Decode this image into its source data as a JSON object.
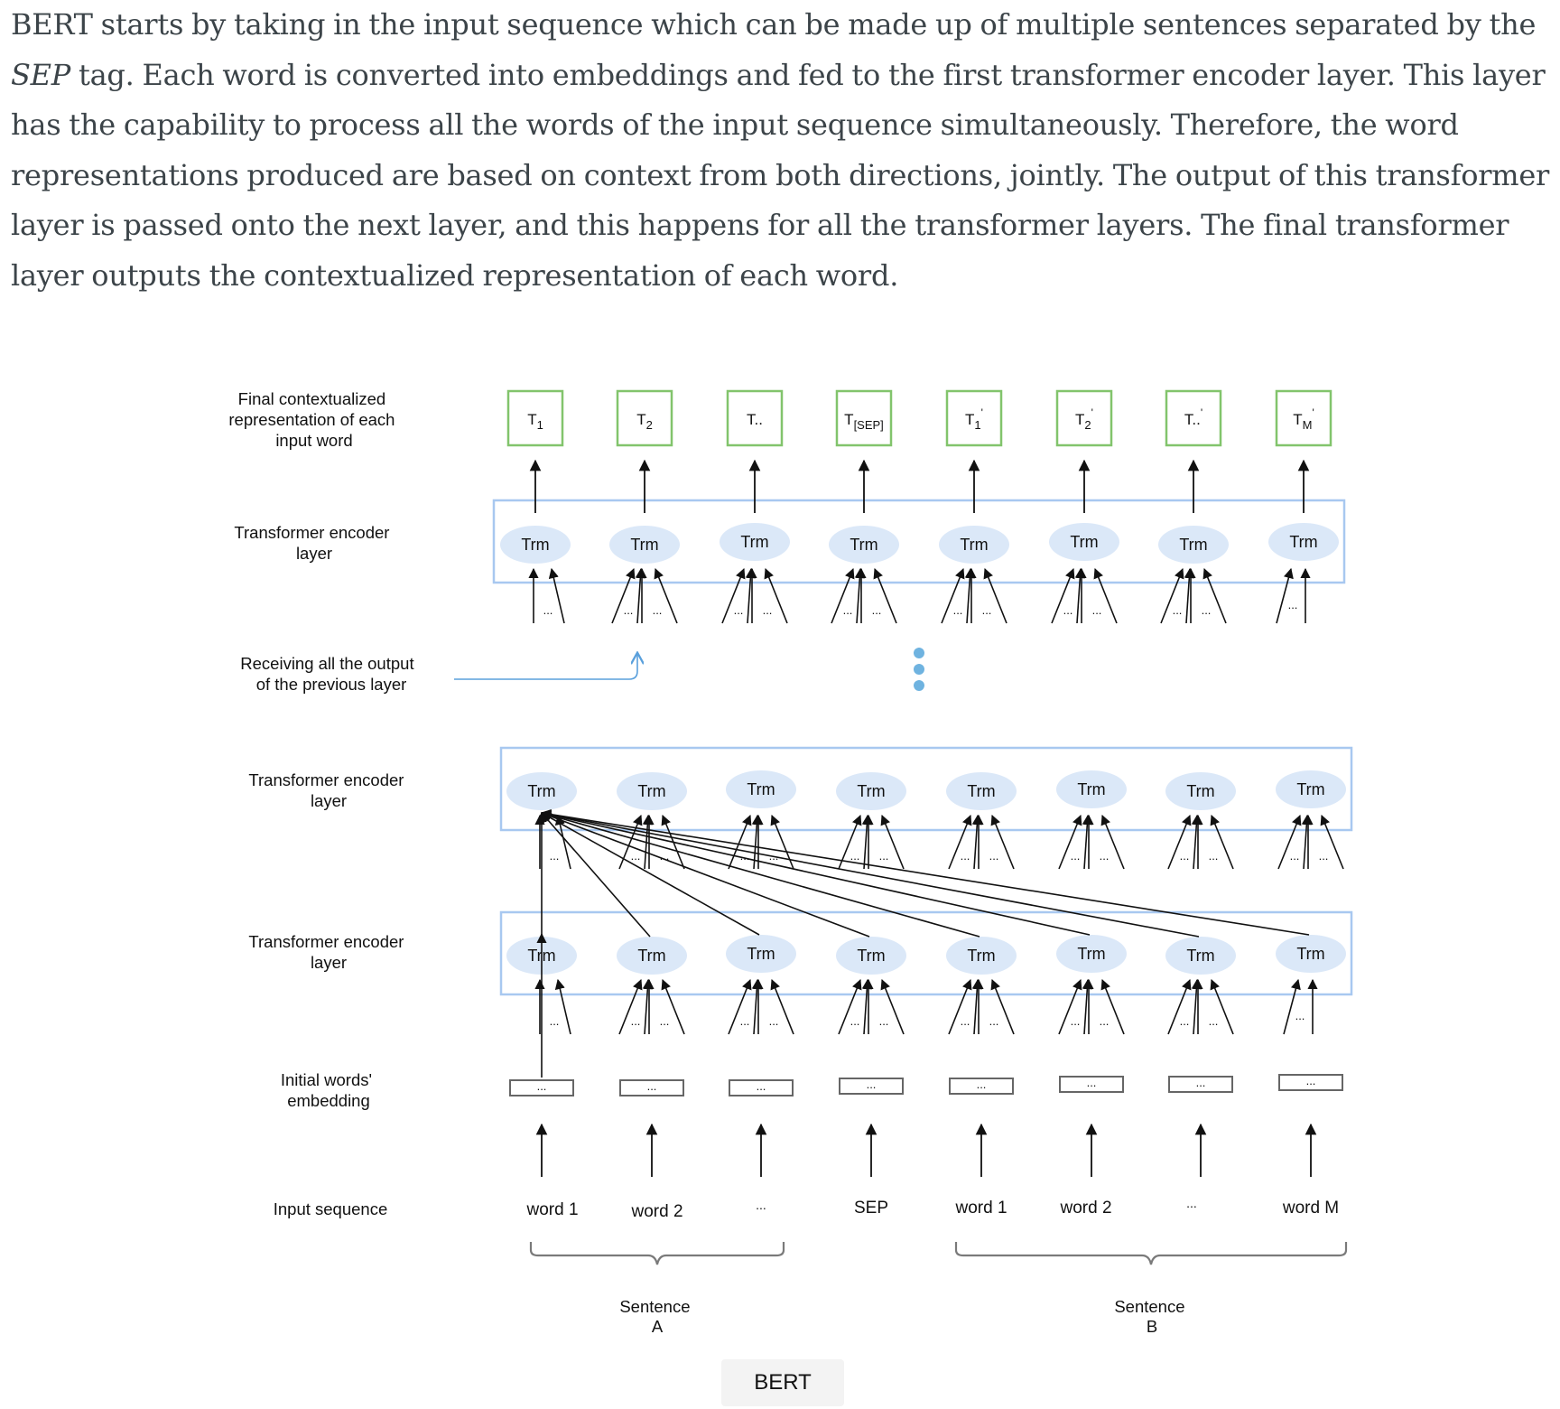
{
  "article": {
    "p1": "BERT starts by taking in the input sequence which can be made up of multiple sentences separated by the ",
    "p1_em": "SEP",
    "p2": " tag. Each word is converted into embeddings and fed to the first transformer encoder layer. This layer has the capability to process all the words of the input sequence simultaneously. Therefore, the word representations produced are based on context from both directions, jointly. The output of this transformer layer is passed onto the next layer, and this happens for all the transformer layers. The final transformer layer outputs the contextualized representation of each word."
  },
  "diagram": {
    "row_labels": {
      "final": [
        "Final contextualized",
        "representation of each",
        "input word"
      ],
      "top_layer": [
        "Transformer encoder",
        "layer"
      ],
      "receiving": [
        "Receiving all the output",
        "of the previous layer"
      ],
      "mid_layer": [
        "Transformer encoder",
        "layer"
      ],
      "low_layer": [
        "Transformer encoder",
        "layer"
      ],
      "embedding": [
        "Initial words'",
        "embedding"
      ],
      "input": "Input sequence"
    },
    "trm_label": "Trm",
    "ellipsis": "...",
    "outputs": [
      {
        "base": "T",
        "sub": "1",
        "sup": ""
      },
      {
        "base": "T",
        "sub": "2",
        "sup": ""
      },
      {
        "base": "T..",
        "sub": "",
        "sup": ""
      },
      {
        "base": "T",
        "sub": "[SEP]",
        "sup": ""
      },
      {
        "base": "T",
        "sub": "1",
        "sup": "'"
      },
      {
        "base": "T",
        "sub": "2",
        "sup": "'"
      },
      {
        "base": "T..",
        "sub": "",
        "sup": "'"
      },
      {
        "base": "T",
        "sub": "M",
        "sup": "'"
      }
    ],
    "inputs": [
      "word 1",
      "word 2",
      "...",
      "SEP",
      "word 1",
      "word 2",
      "...",
      "word M"
    ],
    "sentence_a": [
      "Sentence",
      "A"
    ],
    "sentence_b": [
      "Sentence",
      "B"
    ],
    "colors": {
      "layer_border": "#a8c8f0",
      "trm_fill": "#dbe8f8",
      "output_border": "#82c46c",
      "connector": "#5aa0dc",
      "dots": "#6fb3e0",
      "brace": "#7a7a7a"
    }
  },
  "caption": "BERT"
}
